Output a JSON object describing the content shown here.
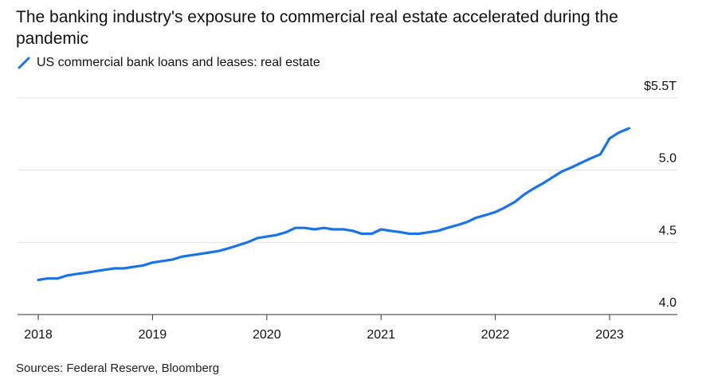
{
  "header": {
    "title": "The banking industry's exposure to commercial real estate accelerated during the pandemic"
  },
  "legend": {
    "label": "US commercial bank loans and leases: real estate",
    "color": "#1a73e8",
    "icon": "line-swatch-icon"
  },
  "footer": {
    "source": "Sources: Federal Reserve, Bloomberg"
  },
  "chart_data": {
    "type": "line",
    "title": "The banking industry's exposure to commercial real estate accelerated during the pandemic",
    "xlabel": "",
    "ylabel": "",
    "x_ticks": [
      "2018",
      "2019",
      "2020",
      "2021",
      "2022",
      "2023"
    ],
    "y_ticks": [
      "$5.5T",
      "5.0",
      "4.5",
      "4.0"
    ],
    "y_tick_values": [
      5.5,
      5.0,
      4.5,
      4.0
    ],
    "ylim": [
      4.0,
      5.5
    ],
    "xlim": [
      2018.0,
      2023.4
    ],
    "y_axis_side": "right",
    "grid": "horizontal",
    "series": [
      {
        "name": "US commercial bank loans and leases: real estate",
        "color": "#1a73e8",
        "x": [
          2018.0,
          2018.08,
          2018.17,
          2018.25,
          2018.33,
          2018.42,
          2018.5,
          2018.58,
          2018.67,
          2018.75,
          2018.83,
          2018.92,
          2019.0,
          2019.08,
          2019.17,
          2019.25,
          2019.33,
          2019.42,
          2019.5,
          2019.58,
          2019.67,
          2019.75,
          2019.83,
          2019.92,
          2020.0,
          2020.08,
          2020.17,
          2020.25,
          2020.33,
          2020.42,
          2020.5,
          2020.58,
          2020.67,
          2020.75,
          2020.83,
          2020.92,
          2021.0,
          2021.08,
          2021.17,
          2021.25,
          2021.33,
          2021.42,
          2021.5,
          2021.58,
          2021.67,
          2021.75,
          2021.83,
          2021.92,
          2022.0,
          2022.08,
          2022.17,
          2022.25,
          2022.33,
          2022.42,
          2022.5,
          2022.58,
          2022.67,
          2022.75,
          2022.83,
          2022.92,
          2023.0,
          2023.08,
          2023.17
        ],
        "values": [
          4.24,
          4.25,
          4.25,
          4.27,
          4.28,
          4.29,
          4.3,
          4.31,
          4.32,
          4.32,
          4.33,
          4.34,
          4.36,
          4.37,
          4.38,
          4.4,
          4.41,
          4.42,
          4.43,
          4.44,
          4.46,
          4.48,
          4.5,
          4.53,
          4.54,
          4.55,
          4.57,
          4.6,
          4.6,
          4.59,
          4.6,
          4.59,
          4.59,
          4.58,
          4.56,
          4.56,
          4.59,
          4.58,
          4.57,
          4.56,
          4.56,
          4.57,
          4.58,
          4.6,
          4.62,
          4.64,
          4.67,
          4.69,
          4.71,
          4.74,
          4.78,
          4.83,
          4.87,
          4.91,
          4.95,
          4.99,
          5.02,
          5.05,
          5.08,
          5.11,
          5.22,
          5.26,
          5.29
        ]
      }
    ]
  }
}
